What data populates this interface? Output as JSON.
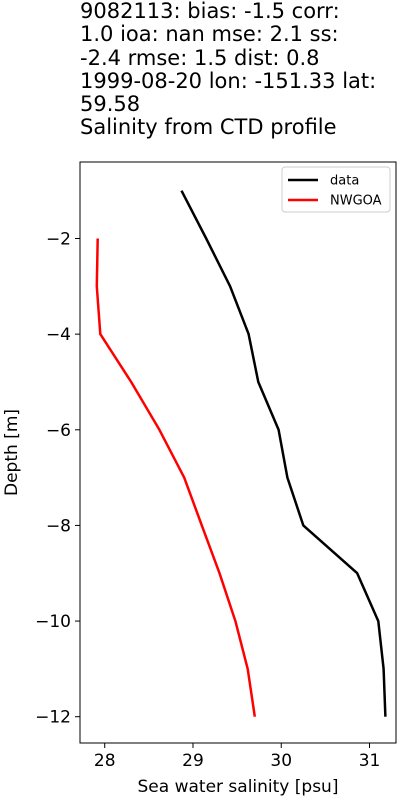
{
  "title": {
    "lines": [
      "9082113: bias: -1.5  corr:",
      "1.0  ioa: nan  mse: 2.1  ss:",
      "-2.4  rmse: 1.5  dist: 0.8",
      "1999-08-20 lon: -151.33 lat:",
      "59.58",
      "Salinity from CTD profile"
    ]
  },
  "chart_data": {
    "type": "line",
    "xlabel": "Sea water salinity [psu]",
    "ylabel": "Depth [m]",
    "xlim": [
      27.72,
      31.3
    ],
    "ylim": [
      -12.55,
      -0.4
    ],
    "xticks": [
      28,
      29,
      30,
      31
    ],
    "yticks": [
      -2,
      -4,
      -6,
      -8,
      -10,
      -12
    ],
    "xtick_labels": [
      "28",
      "29",
      "30",
      "31"
    ],
    "ytick_labels": [
      "−2",
      "−4",
      "−6",
      "−8",
      "−10",
      "−12"
    ],
    "grid": false,
    "legend_position": "top-right",
    "series": [
      {
        "name": "data",
        "color": "#000000",
        "x": [
          28.87,
          29.15,
          29.42,
          29.63,
          29.74,
          29.97,
          30.07,
          30.25,
          30.86,
          31.1,
          31.16,
          31.18
        ],
        "y": [
          -1,
          -2,
          -3,
          -4,
          -5,
          -6,
          -7,
          -8,
          -9,
          -10,
          -11,
          -12
        ]
      },
      {
        "name": "NWGOA",
        "color": "#ff0000",
        "x": [
          27.92,
          27.91,
          27.95,
          28.3,
          28.62,
          28.9,
          29.1,
          29.3,
          29.48,
          29.62,
          29.7
        ],
        "y": [
          -2,
          -3,
          -4,
          -5,
          -6,
          -7,
          -8,
          -9,
          -10,
          -11,
          -12
        ]
      }
    ]
  }
}
